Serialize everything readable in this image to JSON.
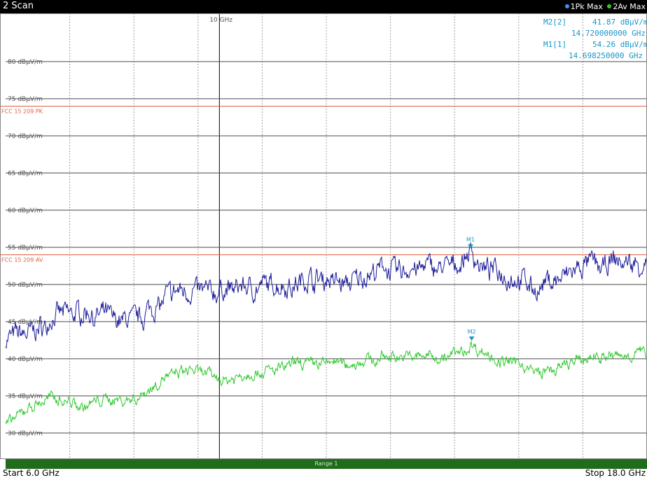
{
  "header": {
    "scan_label": "2 Scan",
    "trace1_label": "1Pk Max",
    "trace2_label": "2Av Max"
  },
  "center_freq_label": "10 GHz",
  "markers_info": {
    "m2_name": "M2[2]",
    "m2_level": "41.87 dBμV/m",
    "m2_freq": "14.720000000 GHz",
    "m1_name": "M1[1]",
    "m1_level": "54.26 dBμV/m",
    "m1_freq": "14.698250000 GHz"
  },
  "limit_lines": [
    {
      "label": "FCC 15 209 PK",
      "level": 74,
      "color": "#e06040"
    },
    {
      "label": "FCC 15 209 AV",
      "level": 54,
      "color": "#e06040"
    }
  ],
  "range_label": "Range 1",
  "footer": {
    "start": "Start 6.0 GHz",
    "stop": "Stop 18.0 GHz"
  },
  "colors": {
    "trace1": "#1c1c9a",
    "trace2": "#2ec82e",
    "marker": "#1a96c8",
    "limit": "#e06040",
    "grid_h": "#4a4a4a",
    "grid_v": "#a0a0a0"
  },
  "chart_data": {
    "type": "line",
    "x_unit": "GHz",
    "xlim": [
      6.0,
      18.0
    ],
    "ylim": [
      26.5,
      86.5
    ],
    "y_ticks": [
      80,
      75,
      70,
      65,
      60,
      55,
      50,
      45,
      40,
      35,
      30
    ],
    "y_tick_labels": [
      "80 dBμV/m",
      "75 dBμV/m",
      "70 dBμV/m",
      "65 dBμV/m",
      "60 dBμV/m",
      "55 dBμV/m",
      "50 dBμV/m",
      "45 dBμV/m",
      "40 dBμV/m",
      "35 dBμV/m",
      "30 dBμV/m"
    ],
    "series": [
      {
        "name": "1Pk Max",
        "x": [
          6.0,
          6.5,
          7.0,
          7.5,
          8.0,
          8.5,
          9.0,
          9.5,
          10.0,
          10.5,
          11.0,
          11.5,
          12.0,
          12.5,
          13.0,
          13.5,
          14.0,
          14.5,
          14.7,
          15.0,
          15.5,
          16.0,
          16.5,
          17.0,
          17.5,
          18.0
        ],
        "values": [
          42.5,
          44.0,
          45.5,
          46.5,
          45.0,
          46.0,
          48.5,
          49.5,
          49.0,
          50.0,
          49.5,
          50.5,
          51.0,
          50.5,
          51.5,
          52.0,
          52.0,
          52.5,
          54.3,
          51.5,
          51.0,
          49.5,
          51.0,
          52.0,
          52.5,
          52.5
        ]
      },
      {
        "name": "2Av Max",
        "x": [
          6.0,
          6.5,
          7.0,
          7.5,
          8.0,
          8.5,
          9.0,
          9.5,
          10.0,
          10.5,
          11.0,
          11.5,
          12.0,
          12.5,
          13.0,
          13.5,
          14.0,
          14.5,
          14.72,
          15.0,
          15.5,
          16.0,
          16.5,
          17.0,
          17.5,
          18.0
        ],
        "values": [
          31.0,
          33.5,
          35.0,
          34.0,
          34.5,
          35.0,
          37.5,
          38.0,
          37.0,
          38.0,
          38.5,
          39.5,
          40.0,
          39.5,
          40.0,
          40.5,
          40.5,
          41.0,
          41.9,
          40.5,
          39.5,
          38.0,
          39.0,
          40.0,
          40.5,
          40.5
        ]
      }
    ],
    "markers": [
      {
        "label": "M1",
        "x": 14.69825,
        "y": 54.26,
        "series": 0
      },
      {
        "label": "M2",
        "x": 14.72,
        "y": 41.87,
        "series": 1
      }
    ],
    "grid": true
  }
}
